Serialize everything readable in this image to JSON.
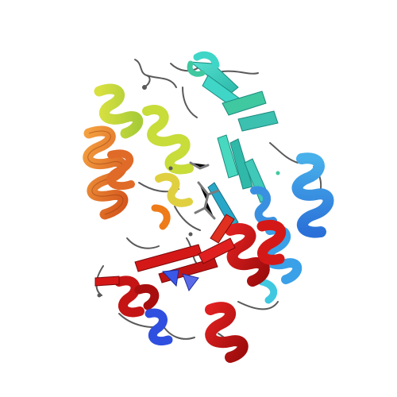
{
  "image": {
    "background": "#ffffff",
    "subject": "protein-ribbon-structure",
    "coloring": "rainbow-n-to-c-terminus",
    "palette": {
      "blue": "#2f4fe0",
      "light_blue": "#3aa0e8",
      "cyan": "#3fd6c8",
      "teal": "#40c8a0",
      "green": "#8fd44a",
      "yellow_green": "#c8dc3a",
      "yellow": "#e8d040",
      "orange": "#f08a2a",
      "red_orange": "#e0502a",
      "red": "#d41818",
      "dark_red": "#a80e0e",
      "coil": "#5a5a5a",
      "ligand": "#7a7a7a"
    }
  }
}
